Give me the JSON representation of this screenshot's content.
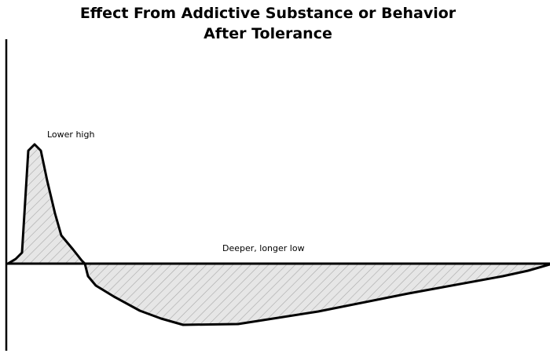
{
  "title": {
    "line1": "Effect From Addictive Substance or Behavior",
    "line2": "After Tolerance"
  },
  "annotations": {
    "peak_label": "Lower high",
    "trough_label": "Deeper, longer low"
  },
  "colors": {
    "stroke": "#000000",
    "fill": "#e6e6e6",
    "hatch": "#a8a8a8",
    "background": "#ffffff"
  }
}
